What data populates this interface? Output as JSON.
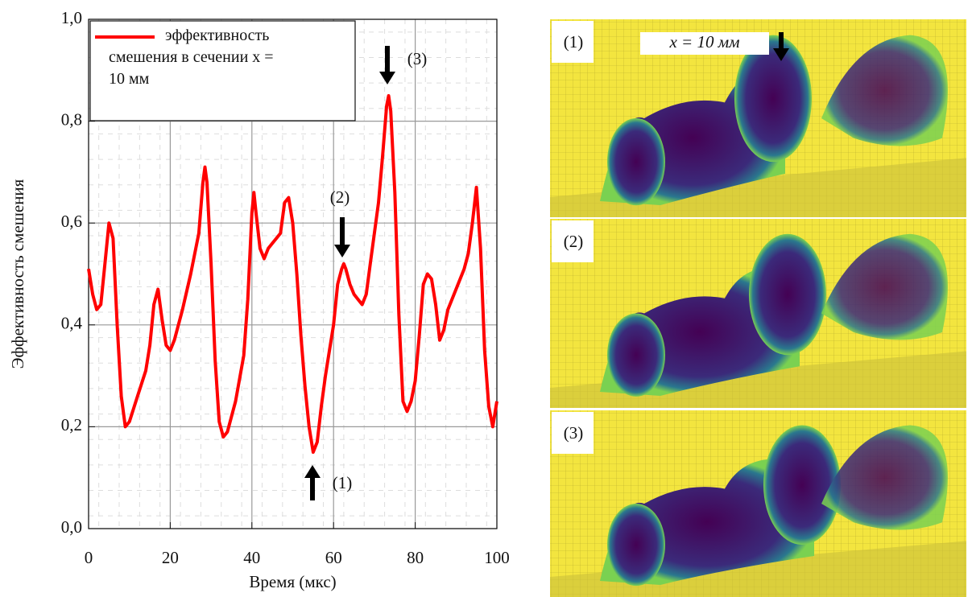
{
  "chart_data": {
    "type": "line",
    "xlabel": "Время (мкс)",
    "ylabel": "Эффективность смешения",
    "x": [
      0,
      1,
      2,
      3,
      4,
      5,
      6,
      7,
      8,
      9,
      10,
      12,
      14,
      15,
      16,
      17,
      18,
      19,
      20,
      21,
      23,
      25,
      27,
      28,
      28.5,
      29,
      30,
      31,
      32,
      33,
      34,
      36,
      38,
      39,
      40,
      40.5,
      41,
      42,
      43,
      44,
      45,
      46,
      47,
      48,
      49,
      50,
      51,
      52,
      53,
      54,
      55,
      56,
      57,
      58,
      59,
      60,
      61,
      62,
      62.5,
      63,
      64,
      65,
      66,
      67,
      68,
      69,
      70,
      71,
      72,
      73,
      73.5,
      74,
      75,
      76,
      77,
      78,
      79,
      80,
      81,
      82,
      83,
      84,
      85,
      86,
      87,
      88,
      90,
      92,
      93,
      94,
      95,
      96,
      97,
      98,
      99,
      100
    ],
    "series": [
      {
        "name": "эффективность смешения в сечении x = 10 мм",
        "color": "#ff0000",
        "values": [
          0.51,
          0.46,
          0.43,
          0.44,
          0.52,
          0.6,
          0.57,
          0.4,
          0.26,
          0.2,
          0.21,
          0.26,
          0.31,
          0.36,
          0.44,
          0.47,
          0.41,
          0.36,
          0.35,
          0.37,
          0.43,
          0.5,
          0.58,
          0.68,
          0.71,
          0.68,
          0.52,
          0.33,
          0.21,
          0.18,
          0.19,
          0.25,
          0.34,
          0.45,
          0.62,
          0.66,
          0.62,
          0.55,
          0.53,
          0.55,
          0.56,
          0.57,
          0.58,
          0.64,
          0.65,
          0.6,
          0.5,
          0.38,
          0.28,
          0.2,
          0.15,
          0.17,
          0.24,
          0.3,
          0.35,
          0.4,
          0.48,
          0.51,
          0.52,
          0.51,
          0.48,
          0.46,
          0.45,
          0.44,
          0.46,
          0.52,
          0.58,
          0.64,
          0.73,
          0.83,
          0.85,
          0.82,
          0.66,
          0.42,
          0.25,
          0.23,
          0.25,
          0.29,
          0.38,
          0.48,
          0.5,
          0.49,
          0.44,
          0.37,
          0.39,
          0.43,
          0.47,
          0.51,
          0.54,
          0.6,
          0.67,
          0.55,
          0.35,
          0.24,
          0.2,
          0.25
        ]
      }
    ],
    "xlim": [
      0,
      100
    ],
    "ylim": [
      0,
      1.0
    ],
    "xticks": [
      0,
      20,
      40,
      60,
      80,
      100
    ],
    "yticks": [
      {
        "value": 0,
        "label": "0,0"
      },
      {
        "value": 0.2,
        "label": "0,2"
      },
      {
        "value": 0.4,
        "label": "0,4"
      },
      {
        "value": 0.6,
        "label": "0,6"
      },
      {
        "value": 0.8,
        "label": "0,8"
      },
      {
        "value": 1.0,
        "label": "1,0"
      }
    ],
    "grid": true,
    "annotations": [
      "(1)",
      "(2)",
      "(3)"
    ]
  },
  "images": {
    "labels": [
      "(1)",
      "(2)",
      "(3)"
    ],
    "section_label": "x = 10 мм"
  }
}
